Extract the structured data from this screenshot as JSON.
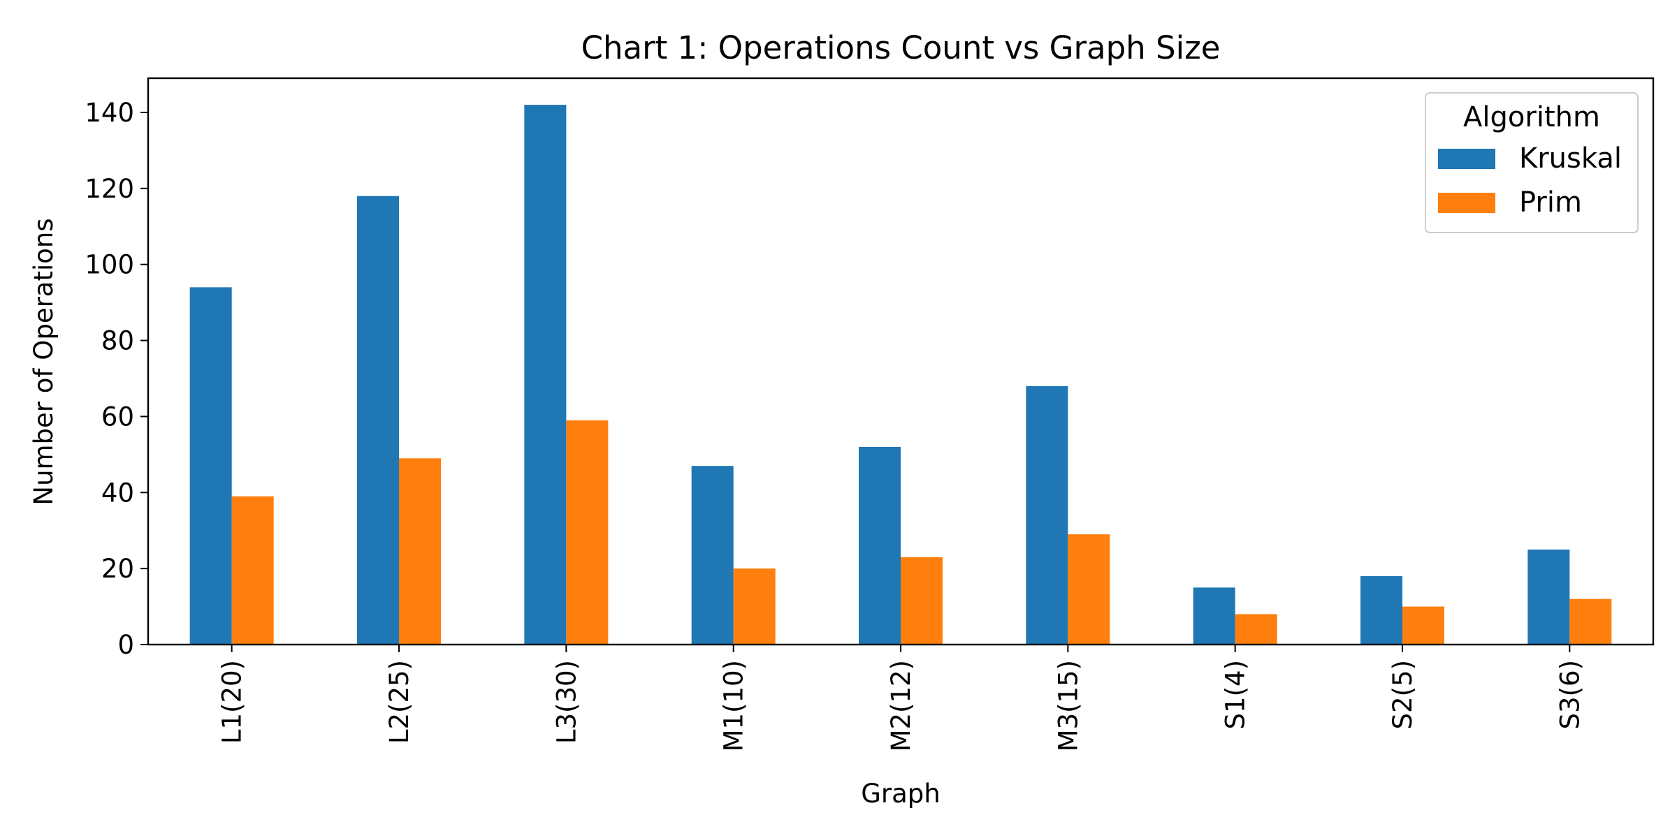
{
  "chart_data": {
    "type": "bar",
    "title": "Chart 1: Operations Count vs Graph Size",
    "xlabel": "Graph",
    "ylabel": "Number of Operations",
    "categories": [
      "L1(20)",
      "L2(25)",
      "L3(30)",
      "M1(10)",
      "M2(12)",
      "M3(15)",
      "S1(4)",
      "S2(5)",
      "S3(6)"
    ],
    "series": [
      {
        "name": "Kruskal",
        "color": "#1f77b4",
        "values": [
          94,
          118,
          142,
          47,
          52,
          68,
          15,
          18,
          25
        ]
      },
      {
        "name": "Prim",
        "color": "#ff7f0e",
        "values": [
          39,
          49,
          59,
          20,
          23,
          29,
          8,
          10,
          12
        ]
      }
    ],
    "ylim": [
      0,
      149
    ],
    "yticks": [
      0,
      20,
      40,
      60,
      80,
      100,
      120,
      140
    ],
    "grid": false,
    "legend": {
      "title": "Algorithm",
      "position": "top-right"
    }
  }
}
